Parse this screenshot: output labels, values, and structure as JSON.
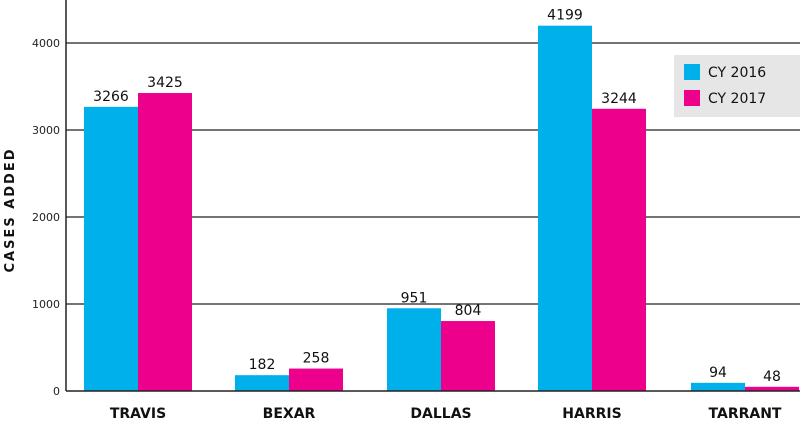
{
  "chart_data": {
    "type": "bar",
    "title": "",
    "xlabel": "",
    "ylabel": "CASES ADDED",
    "categories": [
      "TRAVIS",
      "BEXAR",
      "DALLAS",
      "HARRIS",
      "TARRANT"
    ],
    "series": [
      {
        "name": "CY 2016",
        "values": [
          3266,
          182,
          951,
          4199,
          94
        ],
        "color": "#00b0ea"
      },
      {
        "name": "CY 2017",
        "values": [
          3425,
          258,
          804,
          3244,
          48
        ],
        "color": "#ec008c"
      }
    ],
    "ylim": [
      0,
      4300
    ],
    "yticks": [
      0,
      1000,
      2000,
      3000,
      4000
    ],
    "grid": true,
    "legend_position": "top-right"
  }
}
